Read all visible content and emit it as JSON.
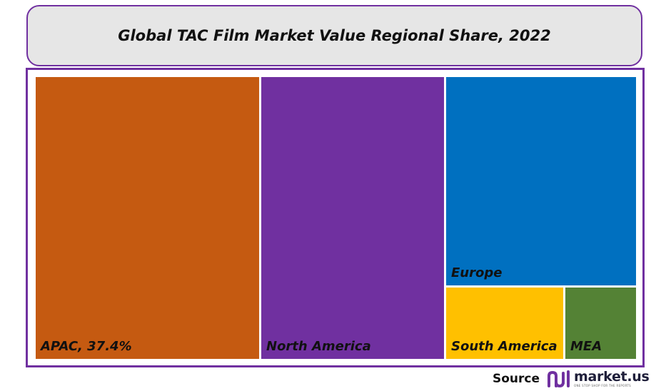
{
  "title": "Global TAC Film Market Value Regional Share, 2022",
  "chart_data": {
    "type": "treemap",
    "title": "Global TAC Film Market Value Regional Share, 2022",
    "tiles": [
      {
        "label": "APAC, 37.4%",
        "region": "APAC",
        "share_percent": 37.4,
        "color": "#c55a11"
      },
      {
        "label": "North America",
        "region": "North America",
        "color": "#7030a0"
      },
      {
        "label": "Europe",
        "region": "Europe",
        "color": "#0070c0"
      },
      {
        "label": "South America",
        "region": "South America",
        "color": "#ffc000"
      },
      {
        "label": "MEA",
        "region": "MEA",
        "color": "#548235"
      }
    ]
  },
  "source": {
    "label": "Source",
    "brand": "market.us",
    "tagline": "ONE STOP SHOP FOR THE REPORTS"
  },
  "colors": {
    "frame": "#7030a0",
    "title_bg": "#e6e6e6"
  }
}
